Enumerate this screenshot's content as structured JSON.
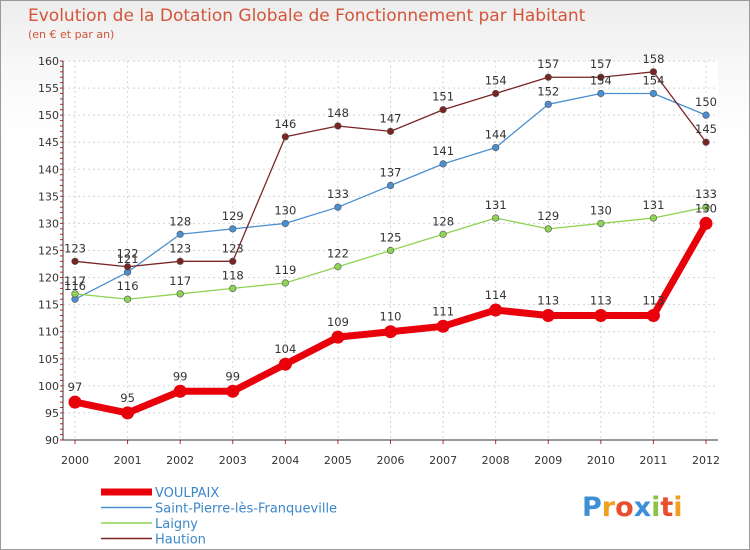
{
  "chart_data": {
    "type": "line",
    "title": "Evolution de la Dotation Globale de Fonctionnement par Habitant",
    "subtitle": "(en € et par an)",
    "xlabel": "",
    "ylabel": "",
    "ylim": [
      90,
      160
    ],
    "yticks": [
      90,
      95,
      100,
      105,
      110,
      115,
      120,
      125,
      130,
      135,
      140,
      145,
      150,
      155,
      160
    ],
    "x": [
      "2000",
      "2001",
      "2002",
      "2003",
      "2004",
      "2005",
      "2006",
      "2007",
      "2008",
      "2009",
      "2010",
      "2011",
      "2012"
    ],
    "grid": true,
    "legend_position": "bottom-left",
    "series": [
      {
        "name": "VOULPAIX",
        "color": "#e8000b",
        "emphasis": true,
        "values": [
          97,
          95,
          99,
          99,
          104,
          109,
          110,
          111,
          114,
          113,
          113,
          113,
          130
        ]
      },
      {
        "name": "Saint-Pierre-lès-Franqueville",
        "color": "#4b8fd1",
        "values": [
          116,
          121,
          128,
          129,
          130,
          133,
          137,
          141,
          144,
          152,
          154,
          154,
          150
        ]
      },
      {
        "name": "Laigny",
        "color": "#8ed454",
        "values": [
          117,
          116,
          117,
          118,
          119,
          122,
          125,
          128,
          131,
          129,
          130,
          131,
          133
        ]
      },
      {
        "name": "Haution",
        "color": "#7a2424",
        "values": [
          123,
          122,
          123,
          123,
          146,
          148,
          147,
          151,
          154,
          157,
          157,
          158,
          145
        ]
      }
    ]
  },
  "logo": {
    "text": "Proxiti",
    "letter_colors": [
      "#3d8fd6",
      "#f0a020",
      "#e84f2a",
      "#3d8fd6",
      "#8bc34a",
      "#e84f2a",
      "#f0a020"
    ]
  }
}
